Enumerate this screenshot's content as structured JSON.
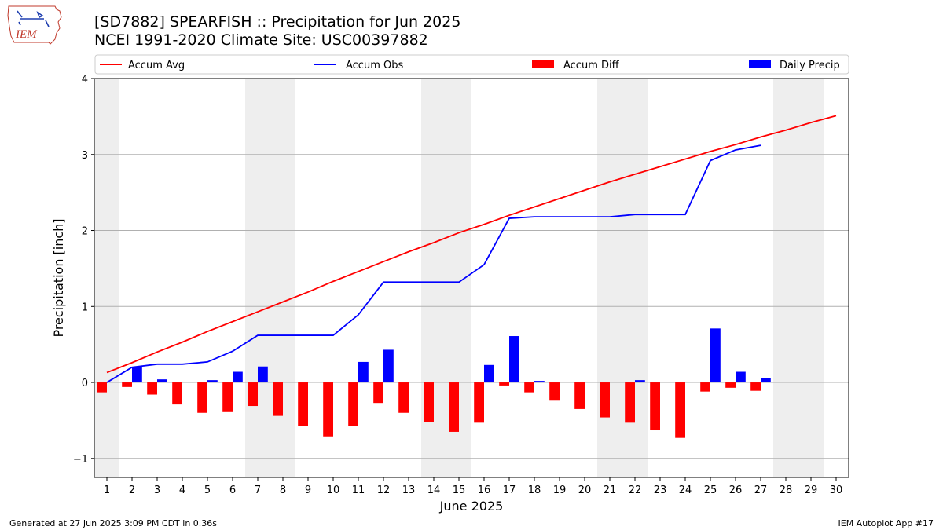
{
  "header": {
    "title_line1": "[SD7882] SPEARFISH :: Precipitation for Jun 2025",
    "title_line2": "NCEI 1991-2020 Climate Site: USC00397882",
    "logo_text": "IEM"
  },
  "footer": {
    "left": "Generated at 27 Jun 2025 3:09 PM CDT in 0.36s",
    "right": "IEM Autoplot App #17"
  },
  "colors": {
    "accum_avg": "#ff0000",
    "accum_obs": "#0000ff",
    "accum_diff": "#ff0000",
    "daily_precip": "#0000ff",
    "weekend_shade": "#eeeeee",
    "grid": "#b0b0b0"
  },
  "chart_data": {
    "type": "bar",
    "xlabel": "June 2025",
    "ylabel": "Precipitation [inch]",
    "ylim": [
      -1.25,
      4
    ],
    "xlim": [
      0.5,
      30.5
    ],
    "yticks": [
      -1,
      0,
      1,
      2,
      3,
      4
    ],
    "ytick_labels": [
      "−1",
      "0",
      "1",
      "2",
      "3",
      "4"
    ],
    "grid": "horizontal",
    "legend_position": "top",
    "shaded_days": [
      1,
      7,
      8,
      14,
      15,
      21,
      22,
      28,
      29
    ],
    "days": [
      1,
      2,
      3,
      4,
      5,
      6,
      7,
      8,
      9,
      10,
      11,
      12,
      13,
      14,
      15,
      16,
      17,
      18,
      19,
      20,
      21,
      22,
      23,
      24,
      25,
      26,
      27,
      28,
      29,
      30
    ],
    "legend": [
      {
        "label": "Accum Avg",
        "kind": "line",
        "color": "#ff0000"
      },
      {
        "label": "Accum Obs",
        "kind": "line",
        "color": "#0000ff"
      },
      {
        "label": "Accum Diff",
        "kind": "bar",
        "color": "#ff0000"
      },
      {
        "label": "Daily Precip",
        "kind": "bar",
        "color": "#0000ff"
      }
    ],
    "series": [
      {
        "name": "Accum Avg",
        "type": "line",
        "values": [
          0.13,
          0.26,
          0.4,
          0.53,
          0.67,
          0.8,
          0.93,
          1.06,
          1.19,
          1.33,
          1.46,
          1.59,
          1.72,
          1.84,
          1.97,
          2.08,
          2.2,
          2.31,
          2.42,
          2.53,
          2.64,
          2.74,
          2.84,
          2.94,
          3.04,
          3.13,
          3.23,
          3.32,
          3.42,
          3.51
        ]
      },
      {
        "name": "Accum Obs",
        "type": "line",
        "values": [
          0.0,
          0.2,
          0.24,
          0.24,
          0.27,
          0.41,
          0.62,
          0.62,
          0.62,
          0.62,
          0.89,
          1.32,
          1.32,
          1.32,
          1.32,
          1.55,
          2.16,
          2.18,
          2.18,
          2.18,
          2.18,
          2.21,
          2.21,
          2.21,
          2.92,
          3.06,
          3.12
        ]
      },
      {
        "name": "Accum Diff",
        "type": "bar",
        "values": [
          -0.13,
          -0.06,
          -0.16,
          -0.29,
          -0.4,
          -0.39,
          -0.31,
          -0.44,
          -0.57,
          -0.71,
          -0.57,
          -0.27,
          -0.4,
          -0.52,
          -0.65,
          -0.53,
          -0.04,
          -0.13,
          -0.24,
          -0.35,
          -0.46,
          -0.53,
          -0.63,
          -0.73,
          -0.12,
          -0.07,
          -0.11
        ]
      },
      {
        "name": "Daily Precip",
        "type": "bar",
        "values": [
          0.0,
          0.2,
          0.04,
          0.0,
          0.03,
          0.14,
          0.21,
          0.0,
          0.0,
          0.0,
          0.27,
          0.43,
          0.0,
          0.0,
          0.0,
          0.23,
          0.61,
          0.02,
          0.0,
          0.0,
          0.0,
          0.03,
          0.0,
          0.0,
          0.71,
          0.14,
          0.06
        ]
      }
    ]
  }
}
